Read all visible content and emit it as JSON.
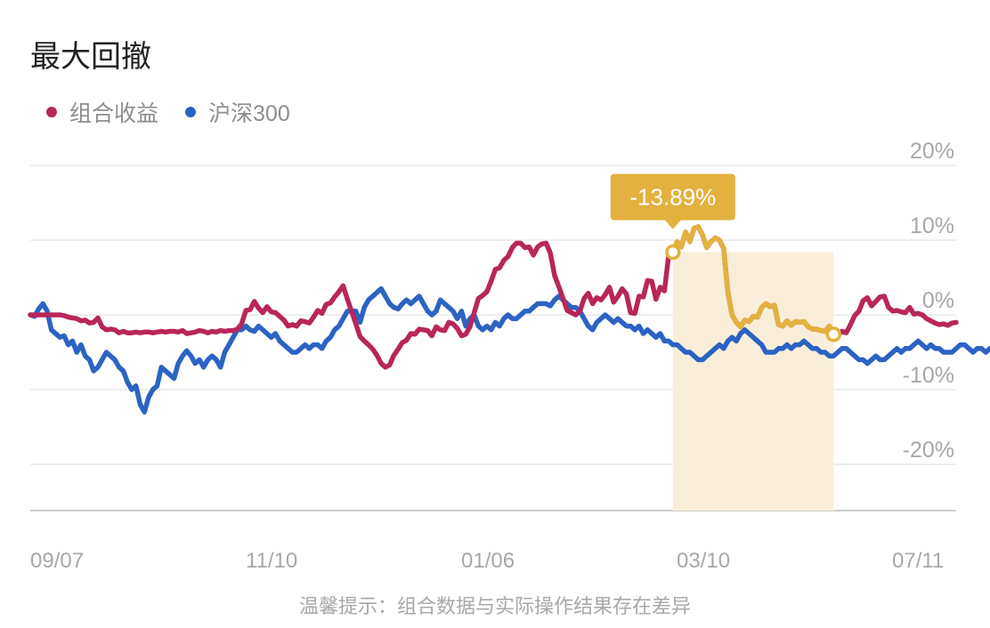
{
  "title": "最大回撤",
  "legend": [
    {
      "name": "组合收益",
      "color": "#b8265a"
    },
    {
      "name": "沪深300",
      "color": "#2b63c4"
    }
  ],
  "drawdown_color": "#e3b13e",
  "drawdown_fill": "#f9eed9",
  "chart_data": {
    "type": "line",
    "y_ticks": [
      "20%",
      "10%",
      "0%",
      "-10%",
      "-20%"
    ],
    "ylim": [
      -26,
      20
    ],
    "x_ticks": [
      "09/07",
      "11/10",
      "01/06",
      "03/10",
      "07/11"
    ],
    "max_drawdown": {
      "label": "-13.89%",
      "start_index": 152,
      "end_index": 190
    },
    "series": [
      {
        "name": "组合收益",
        "color": "#b8265a",
        "values": [
          0,
          0,
          0,
          0,
          0,
          0,
          0,
          0,
          -0.1,
          -0.3,
          -0.4,
          -0.5,
          -0.8,
          -0.7,
          -1.1,
          -1.0,
          -0.4,
          -1.6,
          -2.0,
          -1.9,
          -2.0,
          -2.4,
          -2.2,
          -2.4,
          -2.4,
          -2.3,
          -2.4,
          -2.3,
          -2.3,
          -2.4,
          -2.3,
          -2.2,
          -2.3,
          -2.2,
          -2.2,
          -2.3,
          -2.1,
          -2.5,
          -2.4,
          -2.3,
          -2.1,
          -2.2,
          -2.4,
          -2.2,
          -2.3,
          -2.1,
          -2.2,
          -2.1,
          -2.1,
          -1.9,
          -1.2,
          0.6,
          0.7,
          1.8,
          0.9,
          0.3,
          1.1,
          0.4,
          0.3,
          -0.2,
          -0.7,
          -1.5,
          -1.3,
          -1.5,
          -0.8,
          -0.9,
          -1.1,
          -0.3,
          0.6,
          0.2,
          1.4,
          1.6,
          2.4,
          3.1,
          3.9,
          2.1,
          0.5,
          -1.2,
          -2.9,
          -3.5,
          -4.0,
          -4.6,
          -5.4,
          -6.5,
          -7.0,
          -6.7,
          -5.4,
          -4.6,
          -3.7,
          -3.4,
          -2.5,
          -2.6,
          -1.9,
          -2.0,
          -2.1,
          -2.8,
          -1.6,
          -2.0,
          -2.1,
          -1.0,
          -1.2,
          -1.8,
          -2.8,
          -2.6,
          -1.6,
          0.3,
          2.2,
          2.6,
          3.1,
          4.5,
          6.1,
          6.3,
          7.3,
          7.8,
          9.0,
          9.6,
          9.6,
          9.0,
          9.1,
          8.0,
          9.1,
          9.5,
          9.6,
          8.3,
          5.3,
          3.8,
          2.2,
          0.6,
          0.3,
          0,
          0.5,
          2.2,
          2.9,
          1.5,
          2.3,
          2.0,
          2.7,
          3.7,
          1.7,
          2.5,
          3.5,
          2.8,
          0.3,
          0.2,
          2.5,
          2.4,
          4.6,
          4.5,
          2.1,
          3.7,
          3.2,
          8.0,
          8.4,
          9.8,
          9.1,
          11.1,
          9.8,
          11.6,
          11.8,
          10.7,
          9.0,
          9.8,
          10.3,
          10.0,
          8.9,
          3.0,
          0,
          -1.0,
          -1.6,
          -0.7,
          -0.9,
          -0.2,
          -0.3,
          1.0,
          1.5,
          1.1,
          1.3,
          -1.3,
          -1.5,
          -0.8,
          -1.4,
          -0.9,
          -1.0,
          -0.9,
          -1.6,
          -1.9,
          -1.9,
          -2.1,
          -2.2,
          -1.5,
          -2.6,
          -2.7,
          -2.2,
          -2.4,
          -1.3,
          -0.1,
          0.5,
          1.9,
          2.3,
          1.2,
          1.8,
          2.4,
          2.5,
          1.0,
          0.5,
          0.6,
          0.4,
          0.3,
          1.0,
          0.1,
          0.2,
          0,
          -0.5,
          -0.8,
          -1.1,
          -1.3,
          -1.2,
          -1.4,
          -1.1,
          -1.0
        ]
      },
      {
        "name": "沪深300",
        "color": "#2b63c4",
        "values": [
          0,
          -0.2,
          0.8,
          1.5,
          0.5,
          -2.0,
          -2.5,
          -3.0,
          -2.8,
          -4.0,
          -3.5,
          -5.0,
          -4.0,
          -5.5,
          -6.0,
          -7.5,
          -7.0,
          -6.0,
          -5.0,
          -5.5,
          -6.0,
          -7.0,
          -7.5,
          -9.0,
          -10.0,
          -9.5,
          -12.0,
          -13.0,
          -11.0,
          -10.0,
          -9.5,
          -7.0,
          -7.5,
          -8.0,
          -8.5,
          -6.5,
          -5.5,
          -4.8,
          -5.5,
          -6.5,
          -6.0,
          -7.0,
          -6.0,
          -5.5,
          -6.0,
          -7.0,
          -5.0,
          -4.0,
          -3.0,
          -2.0,
          -2.0,
          -1.5,
          -2.0,
          -2.2,
          -1.5,
          -2.0,
          -2.5,
          -3.0,
          -2.5,
          -3.5,
          -4.0,
          -4.5,
          -5.0,
          -5.0,
          -4.5,
          -4.0,
          -4.5,
          -4.0,
          -4.0,
          -4.5,
          -3.5,
          -3.0,
          -2.0,
          -1.5,
          -0.5,
          0.5,
          0.5,
          0.5,
          -1.0,
          1.0,
          2.0,
          2.5,
          3.0,
          3.5,
          2.5,
          1.5,
          1.0,
          0.8,
          1.5,
          2.0,
          1.5,
          2.0,
          2.5,
          1.5,
          0.5,
          0,
          0.5,
          2.0,
          1.5,
          1.0,
          0.5,
          -0.5,
          0.5,
          -1.5,
          -0.5,
          0,
          -1.5,
          -2.0,
          -1.5,
          -2.0,
          -1.0,
          -1.5,
          -0.5,
          0,
          -0.5,
          -0.5,
          0,
          0.5,
          0.5,
          1.0,
          1.5,
          1.5,
          1.5,
          1.2,
          2.0,
          2.5,
          2.0,
          1.5,
          1.0,
          1.0,
          0.5,
          -0.5,
          -1.5,
          -2.0,
          -1.0,
          -0.5,
          0,
          -0.5,
          -1.0,
          -0.5,
          -1.0,
          -1.5,
          -1.5,
          -2.0,
          -1.5,
          -2.5,
          -2.0,
          -2.5,
          -3.0,
          -2.5,
          -3.5,
          -3.5,
          -4.0,
          -4.0,
          -4.5,
          -5.0,
          -5.0,
          -5.5,
          -6.0,
          -6.0,
          -5.5,
          -5.0,
          -4.5,
          -4.0,
          -4.5,
          -3.5,
          -3.0,
          -3.5,
          -2.5,
          -2.0,
          -2.5,
          -3.0,
          -3.5,
          -4.0,
          -5.0,
          -5.0,
          -5.0,
          -4.5,
          -4.5,
          -4.0,
          -4.5,
          -4.0,
          -4.0,
          -3.5,
          -4.0,
          -4.5,
          -4.5,
          -5.0,
          -5.0,
          -5.5,
          -5.5,
          -5.0,
          -4.5,
          -4.5,
          -5.0,
          -5.5,
          -6.0,
          -6.0,
          -6.5,
          -6.0,
          -5.5,
          -6.0,
          -6.0,
          -5.5,
          -5.0,
          -4.5,
          -5.0,
          -4.5,
          -4.5,
          -4.0,
          -3.5,
          -4.0,
          -4.5,
          -4.0,
          -4.5,
          -4.5,
          -5.0,
          -5.0,
          -5.0,
          -4.5,
          -4.0,
          -4.0,
          -4.5,
          -5.0,
          -4.5,
          -4.5,
          -5.0,
          -4.5,
          -4.5,
          -5.0,
          -4.5,
          -5.0,
          -4.5,
          -4.5,
          -4.5,
          -4.5,
          -4.5
        ]
      }
    ]
  },
  "footnote": "温馨提示：组合数据与实际操作结果存在差异"
}
